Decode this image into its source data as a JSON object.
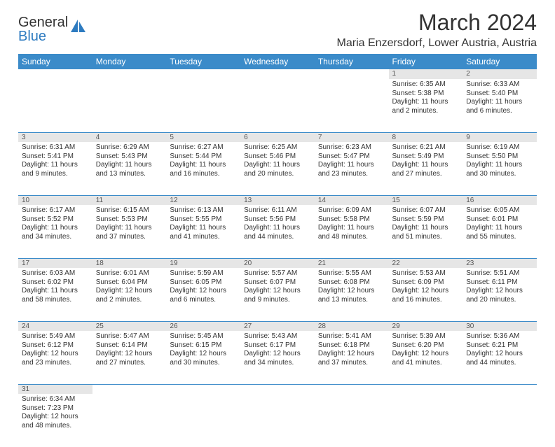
{
  "logo": {
    "general": "General",
    "blue": "Blue"
  },
  "title": "March 2024",
  "location": "Maria Enzersdorf, Lower Austria, Austria",
  "colors": {
    "header_bg": "#3b8bc9",
    "header_text": "#ffffff",
    "daynum_bg": "#e6e6e6",
    "row_border": "#3b8bc9",
    "text": "#333333",
    "logo_blue": "#2d7bc0"
  },
  "weekdays": [
    "Sunday",
    "Monday",
    "Tuesday",
    "Wednesday",
    "Thursday",
    "Friday",
    "Saturday"
  ],
  "weeks": [
    [
      null,
      null,
      null,
      null,
      null,
      {
        "n": "1",
        "sr": "Sunrise: 6:35 AM",
        "ss": "Sunset: 5:38 PM",
        "d1": "Daylight: 11 hours",
        "d2": "and 2 minutes."
      },
      {
        "n": "2",
        "sr": "Sunrise: 6:33 AM",
        "ss": "Sunset: 5:40 PM",
        "d1": "Daylight: 11 hours",
        "d2": "and 6 minutes."
      }
    ],
    [
      {
        "n": "3",
        "sr": "Sunrise: 6:31 AM",
        "ss": "Sunset: 5:41 PM",
        "d1": "Daylight: 11 hours",
        "d2": "and 9 minutes."
      },
      {
        "n": "4",
        "sr": "Sunrise: 6:29 AM",
        "ss": "Sunset: 5:43 PM",
        "d1": "Daylight: 11 hours",
        "d2": "and 13 minutes."
      },
      {
        "n": "5",
        "sr": "Sunrise: 6:27 AM",
        "ss": "Sunset: 5:44 PM",
        "d1": "Daylight: 11 hours",
        "d2": "and 16 minutes."
      },
      {
        "n": "6",
        "sr": "Sunrise: 6:25 AM",
        "ss": "Sunset: 5:46 PM",
        "d1": "Daylight: 11 hours",
        "d2": "and 20 minutes."
      },
      {
        "n": "7",
        "sr": "Sunrise: 6:23 AM",
        "ss": "Sunset: 5:47 PM",
        "d1": "Daylight: 11 hours",
        "d2": "and 23 minutes."
      },
      {
        "n": "8",
        "sr": "Sunrise: 6:21 AM",
        "ss": "Sunset: 5:49 PM",
        "d1": "Daylight: 11 hours",
        "d2": "and 27 minutes."
      },
      {
        "n": "9",
        "sr": "Sunrise: 6:19 AM",
        "ss": "Sunset: 5:50 PM",
        "d1": "Daylight: 11 hours",
        "d2": "and 30 minutes."
      }
    ],
    [
      {
        "n": "10",
        "sr": "Sunrise: 6:17 AM",
        "ss": "Sunset: 5:52 PM",
        "d1": "Daylight: 11 hours",
        "d2": "and 34 minutes."
      },
      {
        "n": "11",
        "sr": "Sunrise: 6:15 AM",
        "ss": "Sunset: 5:53 PM",
        "d1": "Daylight: 11 hours",
        "d2": "and 37 minutes."
      },
      {
        "n": "12",
        "sr": "Sunrise: 6:13 AM",
        "ss": "Sunset: 5:55 PM",
        "d1": "Daylight: 11 hours",
        "d2": "and 41 minutes."
      },
      {
        "n": "13",
        "sr": "Sunrise: 6:11 AM",
        "ss": "Sunset: 5:56 PM",
        "d1": "Daylight: 11 hours",
        "d2": "and 44 minutes."
      },
      {
        "n": "14",
        "sr": "Sunrise: 6:09 AM",
        "ss": "Sunset: 5:58 PM",
        "d1": "Daylight: 11 hours",
        "d2": "and 48 minutes."
      },
      {
        "n": "15",
        "sr": "Sunrise: 6:07 AM",
        "ss": "Sunset: 5:59 PM",
        "d1": "Daylight: 11 hours",
        "d2": "and 51 minutes."
      },
      {
        "n": "16",
        "sr": "Sunrise: 6:05 AM",
        "ss": "Sunset: 6:01 PM",
        "d1": "Daylight: 11 hours",
        "d2": "and 55 minutes."
      }
    ],
    [
      {
        "n": "17",
        "sr": "Sunrise: 6:03 AM",
        "ss": "Sunset: 6:02 PM",
        "d1": "Daylight: 11 hours",
        "d2": "and 58 minutes."
      },
      {
        "n": "18",
        "sr": "Sunrise: 6:01 AM",
        "ss": "Sunset: 6:04 PM",
        "d1": "Daylight: 12 hours",
        "d2": "and 2 minutes."
      },
      {
        "n": "19",
        "sr": "Sunrise: 5:59 AM",
        "ss": "Sunset: 6:05 PM",
        "d1": "Daylight: 12 hours",
        "d2": "and 6 minutes."
      },
      {
        "n": "20",
        "sr": "Sunrise: 5:57 AM",
        "ss": "Sunset: 6:07 PM",
        "d1": "Daylight: 12 hours",
        "d2": "and 9 minutes."
      },
      {
        "n": "21",
        "sr": "Sunrise: 5:55 AM",
        "ss": "Sunset: 6:08 PM",
        "d1": "Daylight: 12 hours",
        "d2": "and 13 minutes."
      },
      {
        "n": "22",
        "sr": "Sunrise: 5:53 AM",
        "ss": "Sunset: 6:09 PM",
        "d1": "Daylight: 12 hours",
        "d2": "and 16 minutes."
      },
      {
        "n": "23",
        "sr": "Sunrise: 5:51 AM",
        "ss": "Sunset: 6:11 PM",
        "d1": "Daylight: 12 hours",
        "d2": "and 20 minutes."
      }
    ],
    [
      {
        "n": "24",
        "sr": "Sunrise: 5:49 AM",
        "ss": "Sunset: 6:12 PM",
        "d1": "Daylight: 12 hours",
        "d2": "and 23 minutes."
      },
      {
        "n": "25",
        "sr": "Sunrise: 5:47 AM",
        "ss": "Sunset: 6:14 PM",
        "d1": "Daylight: 12 hours",
        "d2": "and 27 minutes."
      },
      {
        "n": "26",
        "sr": "Sunrise: 5:45 AM",
        "ss": "Sunset: 6:15 PM",
        "d1": "Daylight: 12 hours",
        "d2": "and 30 minutes."
      },
      {
        "n": "27",
        "sr": "Sunrise: 5:43 AM",
        "ss": "Sunset: 6:17 PM",
        "d1": "Daylight: 12 hours",
        "d2": "and 34 minutes."
      },
      {
        "n": "28",
        "sr": "Sunrise: 5:41 AM",
        "ss": "Sunset: 6:18 PM",
        "d1": "Daylight: 12 hours",
        "d2": "and 37 minutes."
      },
      {
        "n": "29",
        "sr": "Sunrise: 5:39 AM",
        "ss": "Sunset: 6:20 PM",
        "d1": "Daylight: 12 hours",
        "d2": "and 41 minutes."
      },
      {
        "n": "30",
        "sr": "Sunrise: 5:36 AM",
        "ss": "Sunset: 6:21 PM",
        "d1": "Daylight: 12 hours",
        "d2": "and 44 minutes."
      }
    ],
    [
      {
        "n": "31",
        "sr": "Sunrise: 6:34 AM",
        "ss": "Sunset: 7:23 PM",
        "d1": "Daylight: 12 hours",
        "d2": "and 48 minutes."
      },
      null,
      null,
      null,
      null,
      null,
      null
    ]
  ]
}
